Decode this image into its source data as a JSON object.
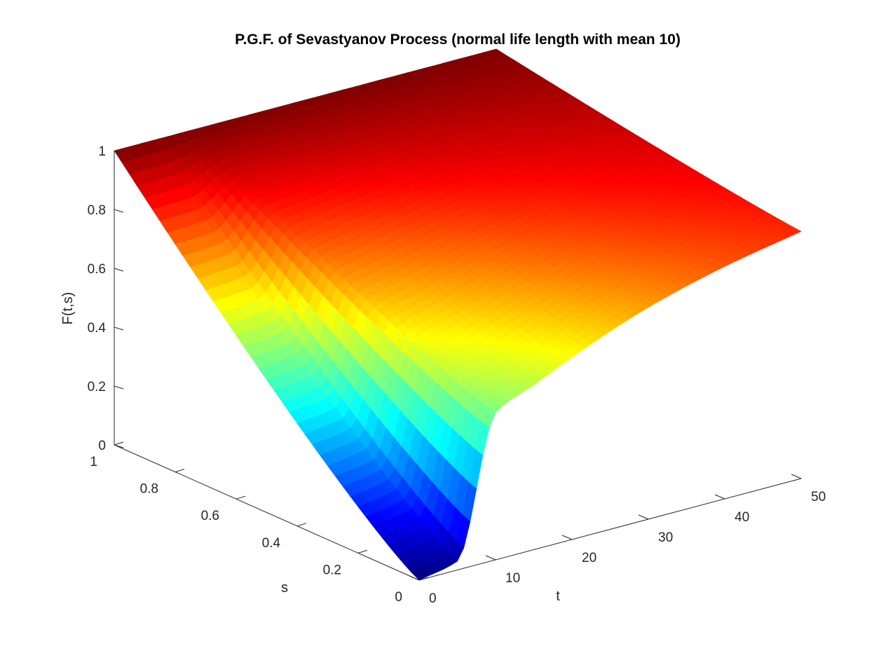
{
  "chart_data": {
    "type": "surface",
    "title": "P.G.F. of Sevastyanov Process (normal life length with mean 10)",
    "xlabel": "t",
    "ylabel": "s",
    "zlabel": "F(t,s)",
    "xlim": [
      0,
      50
    ],
    "ylim": [
      0,
      1
    ],
    "zlim": [
      0,
      1
    ],
    "x_ticks": [
      "0",
      "10",
      "20",
      "30",
      "40",
      "50"
    ],
    "y_ticks": [
      "0",
      "0.2",
      "0.4",
      "0.6",
      "0.8",
      "1"
    ],
    "z_ticks": [
      "0",
      "0.2",
      "0.4",
      "0.6",
      "0.8",
      "1"
    ],
    "colormap": "jet",
    "grid": false,
    "surface_samples": {
      "t": [
        0,
        5,
        10,
        15,
        20,
        30,
        40,
        50
      ],
      "F_at_s0": [
        0,
        0.03,
        0.5,
        0.56,
        0.62,
        0.72,
        0.79,
        0.84
      ],
      "F_at_s1": [
        1,
        1,
        1,
        1,
        1,
        1,
        1,
        1
      ]
    }
  }
}
